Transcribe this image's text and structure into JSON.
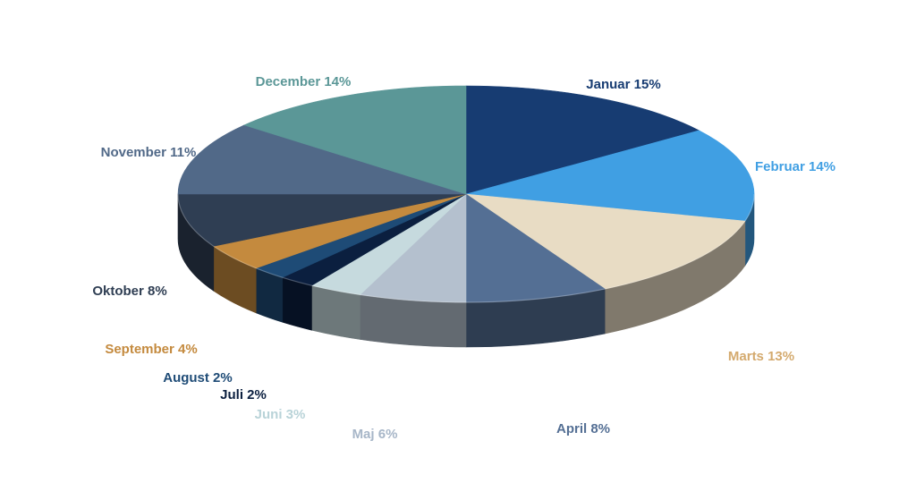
{
  "chart_data": {
    "type": "pie",
    "title": "",
    "slices": [
      {
        "label": "Januar 15%",
        "value": 15,
        "color": "#173c72"
      },
      {
        "label": "Februar 14%",
        "value": 14,
        "color": "#409fe3"
      },
      {
        "label": "Marts 13%",
        "value": 13,
        "color": "#e8dcc4"
      },
      {
        "label": "April 8%",
        "value": 8,
        "color": "#546f94"
      },
      {
        "label": "Maj 6%",
        "value": 6,
        "color": "#b4c0ce"
      },
      {
        "label": "Juni 3%",
        "value": 3,
        "color": "#c6dade"
      },
      {
        "label": "Juli 2%",
        "value": 2,
        "color": "#0b1f3f"
      },
      {
        "label": "August 2%",
        "value": 2,
        "color": "#1e4b76"
      },
      {
        "label": "September 4%",
        "value": 4,
        "color": "#c48a3e"
      },
      {
        "label": "Oktober 8%",
        "value": 8,
        "color": "#2f3e53"
      },
      {
        "label": "November 11%",
        "value": 11,
        "color": "#516988"
      },
      {
        "label": "December 14%",
        "value": 14,
        "color": "#5b9797"
      }
    ],
    "label_colors": [
      "#173c72",
      "#409fe3",
      "#d4aa6e",
      "#546f94",
      "#a7b6c8",
      "#b9d3d8",
      "#0b1f3f",
      "#1e4b76",
      "#c48a3e",
      "#2f3e53",
      "#516988",
      "#5b9797"
    ]
  }
}
